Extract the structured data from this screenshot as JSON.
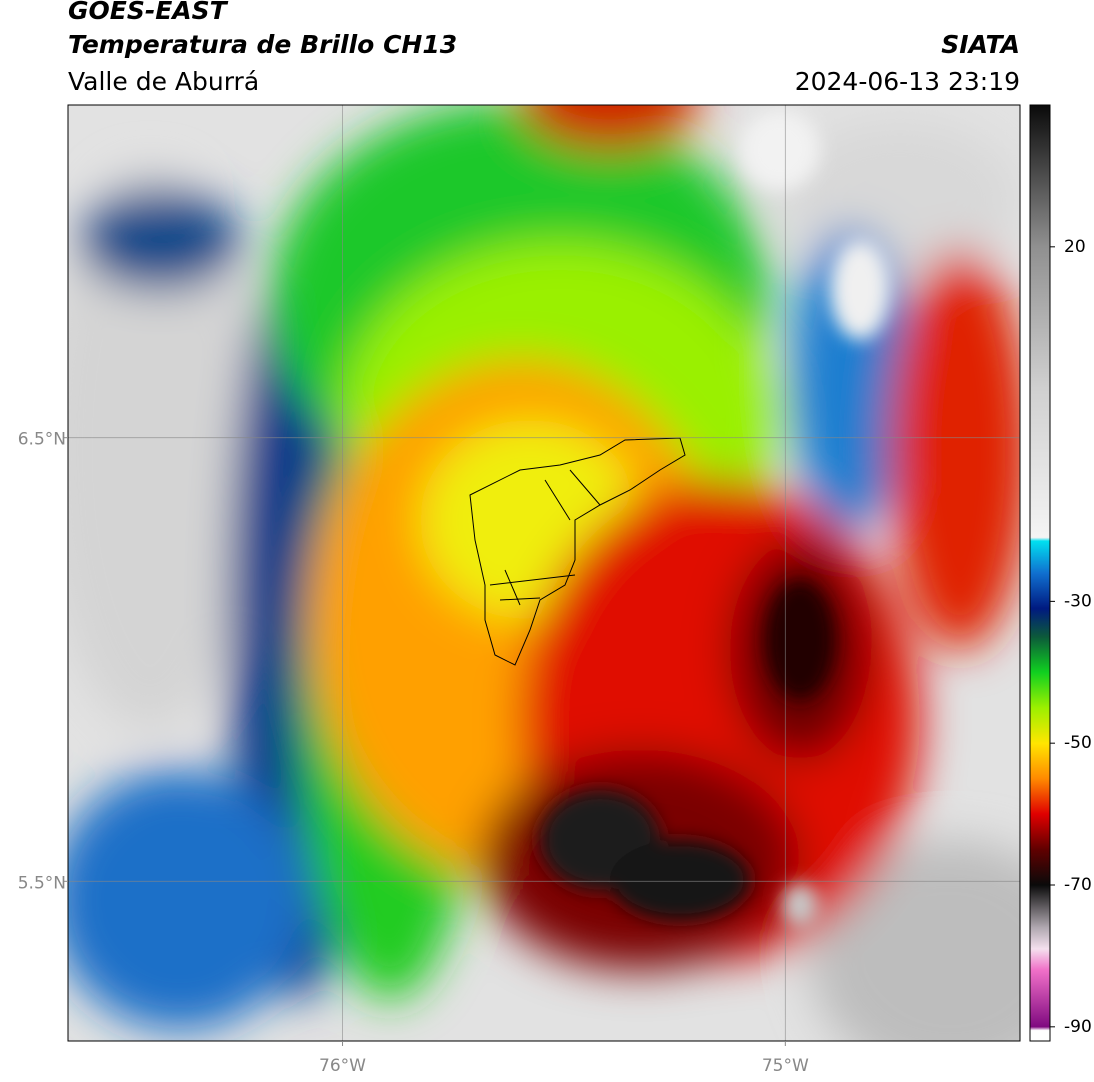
{
  "header": {
    "title": "GOES-EAST",
    "subtitle": "Temperatura de Brillo CH13",
    "region": "Valle de Aburrá",
    "source": "SIATA",
    "timestamp": "2024-06-13 23:19"
  },
  "map": {
    "lonlim": [
      -76.62,
      -74.47
    ],
    "latlim": [
      5.14,
      7.25
    ],
    "lonticks": [
      {
        "value": -76,
        "label": "76°W"
      },
      {
        "value": -75,
        "label": "75°W"
      }
    ],
    "latticks": [
      {
        "value": 6.5,
        "label": "6.5°N"
      },
      {
        "value": 5.5,
        "label": "5.5°N"
      }
    ],
    "grid": true
  },
  "colorbar": {
    "clim": [
      -92,
      40
    ],
    "ticks": [
      20,
      -30,
      -50,
      -70,
      -90
    ],
    "colormap": [
      {
        "value": -92,
        "color": "#ffffff"
      },
      {
        "value": -90.5,
        "color": "#ffffff"
      },
      {
        "value": -90,
        "color": "#800a80"
      },
      {
        "value": -82,
        "color": "#f070c8"
      },
      {
        "value": -79,
        "color": "#f4e0ee"
      },
      {
        "value": -76,
        "color": "#b0a8b0"
      },
      {
        "value": -70,
        "color": "#0a0a0a"
      },
      {
        "value": -65,
        "color": "#600000"
      },
      {
        "value": -60,
        "color": "#e00000"
      },
      {
        "value": -55,
        "color": "#ff8a00"
      },
      {
        "value": -50,
        "color": "#ffe600"
      },
      {
        "value": -45,
        "color": "#9cf000"
      },
      {
        "value": -40,
        "color": "#10d020"
      },
      {
        "value": -35,
        "color": "#0c5a3a"
      },
      {
        "value": -31,
        "color": "#001a80"
      },
      {
        "value": -26,
        "color": "#1070d0"
      },
      {
        "value": -21.5,
        "color": "#00e0f0"
      },
      {
        "value": -21,
        "color": "#f4f4f4"
      },
      {
        "value": 0,
        "color": "#d0d0d0"
      },
      {
        "value": 20,
        "color": "#909090"
      },
      {
        "value": 40,
        "color": "#0a0a0a"
      }
    ]
  }
}
